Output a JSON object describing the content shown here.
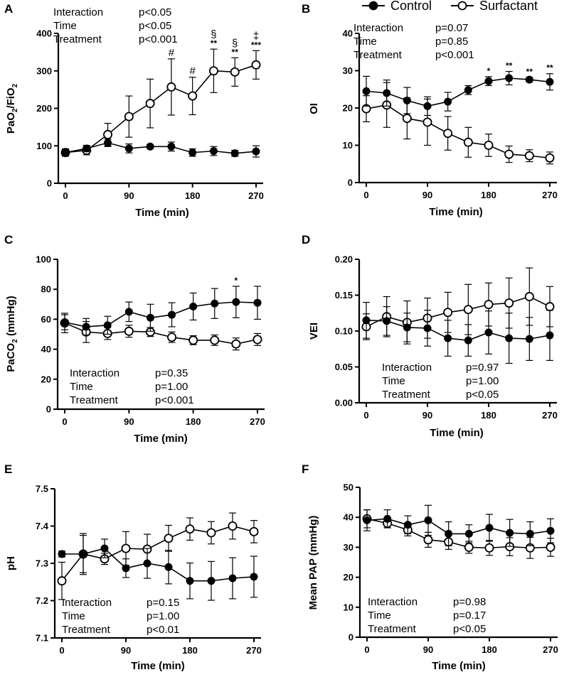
{
  "legend": {
    "control": "Control",
    "surfactant": "Surfactant"
  },
  "chart_data": [
    {
      "type": "line",
      "panel": "A",
      "xlabel": "Time (min)",
      "ylabel": "PaO2/FiO2",
      "ylabel_main": "PaO",
      "ylabel_sub1": "2",
      "ylabel_slash": "/FiO",
      "ylabel_sub2": "2",
      "ylim": [
        0,
        400
      ],
      "yticks": [
        0,
        100,
        200,
        300,
        400
      ],
      "ytick_labels": [
        "0",
        "100",
        "200",
        "300",
        "400"
      ],
      "xlim": [
        0,
        270
      ],
      "xticks": [
        0,
        90,
        180,
        270
      ],
      "xtick_labels": [
        "0",
        "90",
        "180",
        "270"
      ],
      "x": [
        0,
        30,
        60,
        90,
        120,
        150,
        180,
        210,
        240,
        270
      ],
      "series": [
        {
          "name": "Control",
          "values": [
            82,
            93,
            108,
            93,
            98,
            98,
            82,
            86,
            80,
            85
          ],
          "err": [
            8,
            8,
            10,
            12,
            5,
            12,
            10,
            12,
            8,
            15
          ]
        },
        {
          "name": "Surfactant",
          "values": [
            82,
            88,
            130,
            178,
            213,
            257,
            233,
            300,
            297,
            316
          ],
          "err": [
            10,
            12,
            30,
            55,
            65,
            75,
            50,
            58,
            38,
            38
          ]
        }
      ],
      "stats": [
        {
          "label": "Interaction",
          "value": "p<0.05"
        },
        {
          "label": "Time",
          "value": "p<0.05"
        },
        {
          "label": "Treatment",
          "value": "p<0.001"
        }
      ],
      "annotations": [
        {
          "x": 150,
          "text": "#"
        },
        {
          "x": 180,
          "text": "#"
        },
        {
          "x": 210,
          "text": "§",
          "text2": "**"
        },
        {
          "x": 240,
          "text": "§",
          "text2": "**"
        },
        {
          "x": 270,
          "text": "‡",
          "text2": "***"
        }
      ]
    },
    {
      "type": "line",
      "panel": "B",
      "xlabel": "Time (min)",
      "ylabel": "OI",
      "ylim": [
        0,
        40
      ],
      "yticks": [
        0,
        10,
        20,
        30,
        40
      ],
      "ytick_labels": [
        "0",
        "10",
        "20",
        "30",
        "40"
      ],
      "xlim": [
        0,
        270
      ],
      "xticks": [
        0,
        90,
        180,
        270
      ],
      "xtick_labels": [
        "0",
        "90",
        "180",
        "270"
      ],
      "x": [
        0,
        30,
        60,
        90,
        120,
        150,
        180,
        210,
        240,
        270
      ],
      "series": [
        {
          "name": "Control",
          "values": [
            24.5,
            24,
            22,
            20.5,
            21.7,
            24.8,
            27.2,
            28,
            27.6,
            27
          ],
          "err": [
            4,
            3.5,
            3.5,
            2.5,
            2.5,
            1.2,
            1.2,
            1.8,
            0.6,
            2.2
          ]
        },
        {
          "name": "Surfactant",
          "values": [
            19.8,
            20.8,
            17.2,
            16.2,
            13.2,
            10.8,
            10,
            7.6,
            7.2,
            6.6
          ],
          "err": [
            3.5,
            6,
            5.5,
            6.2,
            4.5,
            4,
            3,
            2.2,
            1.6,
            1.6
          ]
        }
      ],
      "stats": [
        {
          "label": "Interaction",
          "value": "p=0.07"
        },
        {
          "label": "Time",
          "value": "p=0.85"
        },
        {
          "label": "Treatment",
          "value": "p<0.001"
        }
      ],
      "annotations": [
        {
          "x": 180,
          "text": "*"
        },
        {
          "x": 210,
          "text": "**"
        },
        {
          "x": 240,
          "text": "**"
        },
        {
          "x": 270,
          "text": "**"
        }
      ]
    },
    {
      "type": "line",
      "panel": "C",
      "xlabel": "Time (min)",
      "ylabel": "PaCO2 (mmHg)",
      "ylabel_main": "PaCO",
      "ylabel_sub1": "2",
      "ylabel_slash": " (mmHg)",
      "ylabel_sub2": "",
      "ylim": [
        0,
        100
      ],
      "yticks": [
        0,
        20,
        40,
        60,
        80,
        100
      ],
      "ytick_labels": [
        "0",
        "20",
        "40",
        "60",
        "80",
        "100"
      ],
      "xlim": [
        0,
        270
      ],
      "xticks": [
        0,
        90,
        180,
        270
      ],
      "xtick_labels": [
        "0",
        "90",
        "180",
        "270"
      ],
      "x": [
        0,
        30,
        60,
        90,
        120,
        150,
        180,
        210,
        240,
        270
      ],
      "series": [
        {
          "name": "Control",
          "values": [
            58,
            55,
            56,
            65,
            61,
            63,
            68.5,
            70.5,
            71.5,
            71
          ],
          "err": [
            5,
            5.5,
            6,
            6.5,
            9,
            8,
            9,
            10,
            10.5,
            11
          ]
        },
        {
          "name": "Surfactant",
          "values": [
            57.5,
            51.5,
            50.5,
            52,
            51.5,
            48,
            46,
            46,
            43.5,
            46.5
          ],
          "err": [
            6.5,
            7,
            4,
            4,
            3,
            3.5,
            3,
            3.5,
            4,
            4
          ]
        }
      ],
      "stats": [
        {
          "label": "Interaction",
          "value": "p=0.35"
        },
        {
          "label": "Time",
          "value": "p=1.00"
        },
        {
          "label": "Treatment",
          "value": "p<0.001"
        }
      ],
      "annotations": [
        {
          "x": 240,
          "text": "*"
        }
      ]
    },
    {
      "type": "line",
      "panel": "D",
      "xlabel": "Time (min)",
      "ylabel": "VEI",
      "ylim": [
        0,
        0.2
      ],
      "yticks": [
        0,
        0.05,
        0.1,
        0.15,
        0.2
      ],
      "ytick_labels": [
        "0.00",
        "0.05",
        "0.10",
        "0.15",
        "0.20"
      ],
      "xlim": [
        0,
        270
      ],
      "xticks": [
        0,
        90,
        180,
        270
      ],
      "xtick_labels": [
        "0",
        "90",
        "180",
        "270"
      ],
      "x": [
        0,
        30,
        60,
        90,
        120,
        150,
        180,
        210,
        240,
        270
      ],
      "series": [
        {
          "name": "Control",
          "values": [
            0.115,
            0.114,
            0.105,
            0.104,
            0.09,
            0.087,
            0.098,
            0.09,
            0.089,
            0.094
          ],
          "err": [
            0.025,
            0.02,
            0.02,
            0.025,
            0.025,
            0.022,
            0.03,
            0.035,
            0.03,
            0.035
          ]
        },
        {
          "name": "Surfactant",
          "values": [
            0.106,
            0.12,
            0.112,
            0.118,
            0.126,
            0.13,
            0.137,
            0.139,
            0.148,
            0.134
          ],
          "err": [
            0.018,
            0.028,
            0.03,
            0.028,
            0.028,
            0.035,
            0.03,
            0.035,
            0.04,
            0.028
          ]
        }
      ],
      "stats": [
        {
          "label": "Interaction",
          "value": "p=0.97"
        },
        {
          "label": "Time",
          "value": "p=1.00"
        },
        {
          "label": "Treatment",
          "value": "p<0.05"
        }
      ],
      "annotations": []
    },
    {
      "type": "line",
      "panel": "E",
      "xlabel": "Time (min)",
      "ylabel": "pH",
      "ylim": [
        7.1,
        7.5
      ],
      "yticks": [
        7.1,
        7.2,
        7.3,
        7.4,
        7.5
      ],
      "ytick_labels": [
        "7.1",
        "7.2",
        "7.3",
        "7.4",
        "7.5"
      ],
      "xlim": [
        0,
        270
      ],
      "xticks": [
        0,
        90,
        180,
        270
      ],
      "xtick_labels": [
        "0",
        "90",
        "180",
        "270"
      ],
      "x": [
        0,
        30,
        60,
        90,
        120,
        150,
        180,
        210,
        240,
        270
      ],
      "series": [
        {
          "name": "Control",
          "values": [
            7.325,
            7.325,
            7.34,
            7.287,
            7.3,
            7.29,
            7.253,
            7.253,
            7.26,
            7.264
          ],
          "err": [
            0.008,
            0.05,
            0.025,
            0.025,
            0.04,
            0.045,
            0.048,
            0.052,
            0.055,
            0.055
          ]
        },
        {
          "name": "Surfactant",
          "values": [
            7.253,
            7.325,
            7.312,
            7.34,
            7.338,
            7.367,
            7.392,
            7.382,
            7.4,
            7.385
          ],
          "err": [
            0.05,
            0.055,
            0.015,
            0.045,
            0.04,
            0.035,
            0.03,
            0.03,
            0.035,
            0.03
          ]
        }
      ],
      "stats": [
        {
          "label": "Interaction",
          "value": "p=0.15"
        },
        {
          "label": "Time",
          "value": "p=1.00"
        },
        {
          "label": "Treatment",
          "value": "p<0.01"
        }
      ],
      "annotations": []
    },
    {
      "type": "line",
      "panel": "F",
      "xlabel": "Time (min)",
      "ylabel": "Mean PAP (mmHg)",
      "ylim": [
        0,
        50
      ],
      "yticks": [
        0,
        10,
        20,
        30,
        40,
        50
      ],
      "ytick_labels": [
        "0",
        "10",
        "20",
        "30",
        "40",
        "50"
      ],
      "xlim": [
        0,
        270
      ],
      "xticks": [
        0,
        90,
        180,
        270
      ],
      "xtick_labels": [
        "0",
        "90",
        "180",
        "270"
      ],
      "x": [
        0,
        30,
        60,
        90,
        120,
        150,
        180,
        210,
        240,
        270
      ],
      "series": [
        {
          "name": "Control",
          "values": [
            39,
            39.5,
            37.5,
            39,
            34.5,
            34.5,
            36.5,
            34.8,
            34.5,
            35.5
          ],
          "err": [
            3.5,
            3,
            3,
            5,
            4,
            3,
            4.5,
            4.5,
            4,
            4
          ]
        },
        {
          "name": "Surfactant",
          "values": [
            39.5,
            38,
            35.8,
            32.5,
            31.8,
            30,
            29.8,
            30.2,
            29.8,
            30
          ],
          "err": [
            3,
            1.5,
            2,
            2.5,
            2.5,
            2,
            2.5,
            3,
            3.5,
            3
          ]
        }
      ],
      "stats": [
        {
          "label": "Interaction",
          "value": "p=0.98"
        },
        {
          "label": "Time",
          "value": "p=0.17"
        },
        {
          "label": "Treatment",
          "value": "p<0.05"
        }
      ],
      "annotations": []
    }
  ]
}
